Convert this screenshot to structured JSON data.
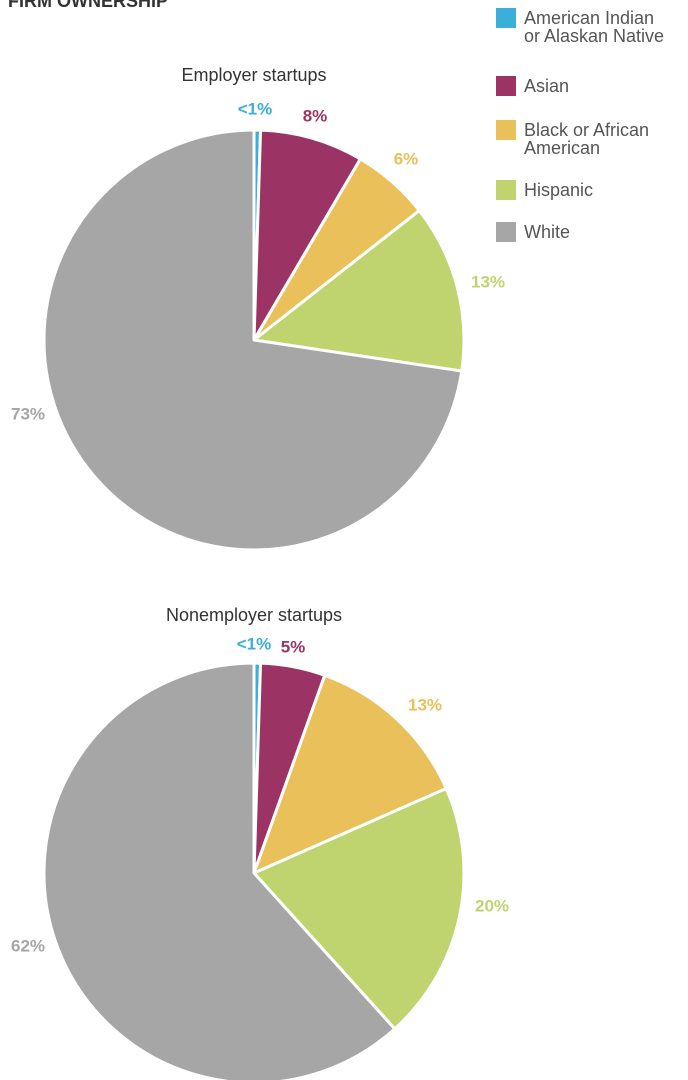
{
  "title": "FIRM OWNERSHIP",
  "legend": {
    "labels": [
      "American Indian\nor Alaskan Native",
      "Asian",
      "Black or African\nAmerican",
      "Hispanic",
      "White"
    ],
    "colors": [
      "#3aafd9",
      "#9b3465",
      "#e9c05a",
      "#bfd36e",
      "#a6a6a6"
    ]
  },
  "chart_data": [
    {
      "type": "pie",
      "title": "Employer startups",
      "values": [
        0.5,
        8,
        6,
        13,
        73
      ],
      "value_labels": [
        "<1%",
        "8%",
        "6%",
        "13%",
        "73%"
      ]
    },
    {
      "type": "pie",
      "title": "Nonemployer startups",
      "values": [
        0.5,
        5,
        13,
        20,
        62
      ],
      "value_labels": [
        "<1%",
        "5%",
        "13%",
        "20%",
        "62%"
      ]
    }
  ]
}
